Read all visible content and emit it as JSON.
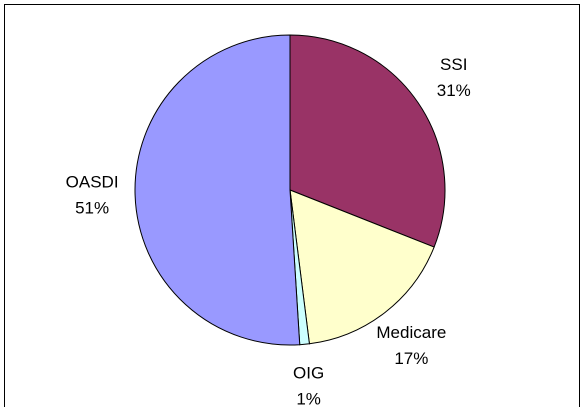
{
  "chart_data": {
    "type": "pie",
    "categories": [
      "SSI",
      "Medicare",
      "OIG",
      "OASDI"
    ],
    "values": [
      31,
      17,
      1,
      51
    ],
    "value_labels": [
      "31%",
      "17%",
      "1%",
      "51%"
    ],
    "colors": [
      "#993366",
      "#ffffcc",
      "#ccffff",
      "#9999ff"
    ]
  }
}
